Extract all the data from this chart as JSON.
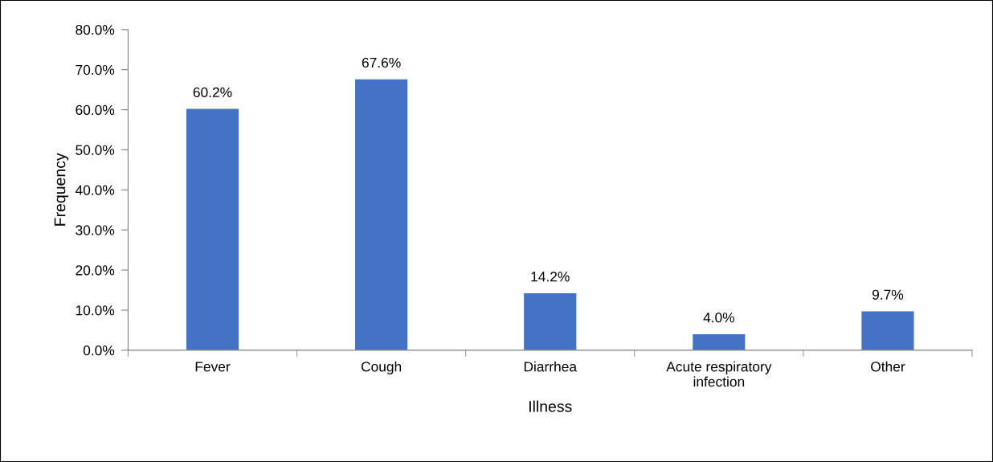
{
  "chart_data": {
    "type": "bar",
    "xlabel": "Illness",
    "ylabel": "Frequency",
    "categories": [
      "Fever",
      "Cough",
      "Diarrhea",
      "Acute respiratory\ninfection",
      "Other"
    ],
    "values": [
      60.2,
      67.6,
      14.2,
      4.0,
      9.7
    ],
    "value_labels": [
      "60.2%",
      "67.6%",
      "14.2%",
      "4.0%",
      "9.7%"
    ],
    "color": "#4472c4",
    "ylim": [
      0,
      80
    ],
    "yticks": [
      {
        "value": 0,
        "label": "0.0%"
      },
      {
        "value": 10,
        "label": "10.0%"
      },
      {
        "value": 20,
        "label": "20.0%"
      },
      {
        "value": 30,
        "label": "30.0%"
      },
      {
        "value": 40,
        "label": "40.0%"
      },
      {
        "value": 50,
        "label": "50.0%"
      },
      {
        "value": 60,
        "label": "60.0%"
      },
      {
        "value": 70,
        "label": "70.0%"
      },
      {
        "value": 80,
        "label": "80.0%"
      }
    ],
    "grid": false,
    "legend": false
  }
}
